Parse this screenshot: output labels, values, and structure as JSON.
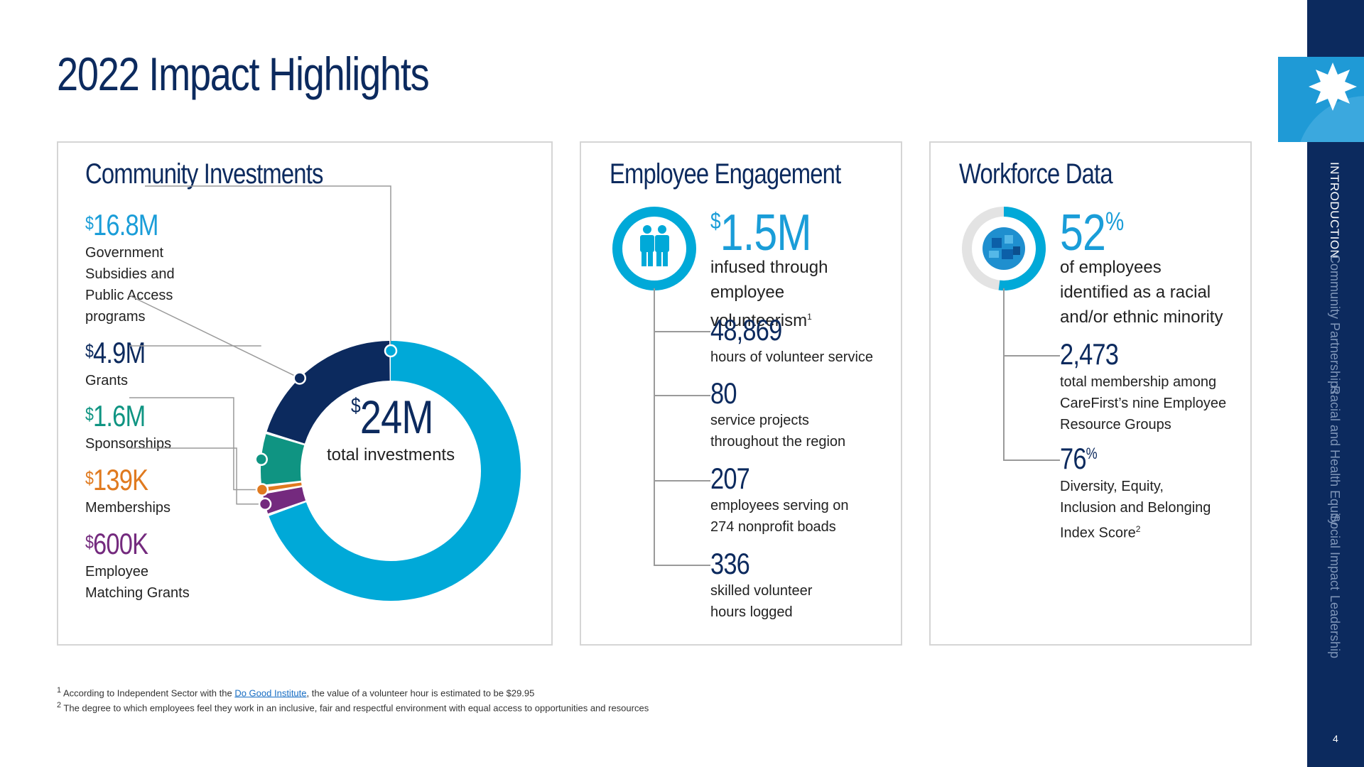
{
  "title": "2022 Impact Highlights",
  "community": {
    "title": "Community Investments",
    "items": [
      {
        "currency": "$",
        "amount": "16.8M",
        "desc": "Government Subsidies and Public Access programs",
        "color": "#1a9dd8"
      },
      {
        "currency": "$",
        "amount": "4.9M",
        "desc": "Grants",
        "color": "#0c2a5e"
      },
      {
        "currency": "$",
        "amount": "1.6M",
        "desc": "Sponsorships",
        "color": "#0f9482"
      },
      {
        "currency": "$",
        "amount": "139K",
        "desc": "Memberships",
        "color": "#e07a1f"
      },
      {
        "currency": "$",
        "amount": "600K",
        "desc": "Employee Matching Grants",
        "color": "#742a7e"
      }
    ],
    "total_currency": "$",
    "total_amount": "24M",
    "total_label": "total investments"
  },
  "chart_data": {
    "type": "pie",
    "title": "",
    "categories": [
      "Government Subsidies and Public Access programs",
      "Grants",
      "Sponsorships",
      "Memberships",
      "Employee Matching Grants"
    ],
    "values": [
      16.8,
      4.9,
      1.6,
      0.139,
      0.6
    ],
    "unit": "M",
    "colors": [
      "#00a9d8",
      "#0c2a5e",
      "#0f9482",
      "#e07a1f",
      "#742a7e"
    ]
  },
  "engagement": {
    "title": "Employee Engagement",
    "icon": "people-icon",
    "headline_currency": "$",
    "headline_amount": "1.5M",
    "headline_desc": "infused through employee volunteerism",
    "headline_footnote": "1",
    "items": [
      {
        "value": "48,869",
        "desc": "hours of volunteer service"
      },
      {
        "value": "80",
        "desc": "service projects throughout the region"
      },
      {
        "value": "207",
        "desc": "employees serving on 274 nonprofit boads"
      },
      {
        "value": "336",
        "desc": "skilled volunteer hours logged"
      }
    ]
  },
  "workforce": {
    "title": "Workforce Data",
    "icon": "puzzle-globe-icon",
    "headline_value": "52",
    "headline_unit": "%",
    "headline_desc": "of employees identified as a racial and/or ethnic minority",
    "items": [
      {
        "value": "2,473",
        "unit": "",
        "desc": "total membership among CareFirst’s nine Employee Resource Groups",
        "footnote": ""
      },
      {
        "value": "76",
        "unit": "%",
        "desc": "Diversity, Equity, Inclusion and Belonging Index Score",
        "footnote": "2"
      }
    ],
    "ring_fraction": 0.52
  },
  "footnotes": {
    "f1_marker": "1",
    "f1_pre": "According to Independent Sector with the ",
    "f1_link": "Do Good Institute",
    "f1_post": ", the value of a volunteer hour is estimated to be $29.95",
    "f2_marker": "2",
    "f2_text": "The degree to which employees feel they work in an inclusive, fair and respectful environment with equal access to opportunities and resources"
  },
  "sidebar": {
    "badge_icon": "star-burst-icon",
    "nav": [
      "INTRODUCTION",
      "Community Partnerships",
      "Racial and Health Equity",
      "Social Impact",
      "Leadership"
    ],
    "active": 0,
    "page_number": "4"
  }
}
